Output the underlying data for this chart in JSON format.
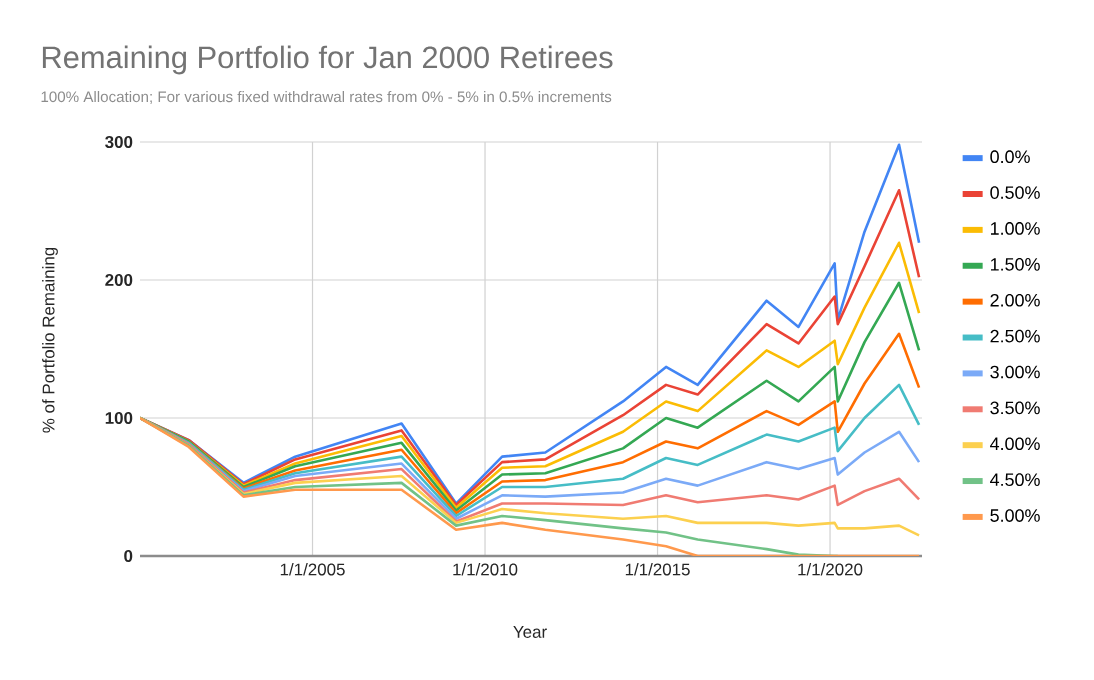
{
  "chart_data": {
    "type": "line",
    "title": "Remaining Portfolio for Jan 2000 Retirees",
    "subtitle": "100% Allocation; For various fixed withdrawal rates from 0% - 5% in 0.5% increments",
    "xlabel": "Year",
    "ylabel": "% of Portfolio Remaining",
    "x": [
      "2000-01",
      "2001-06",
      "2003-01",
      "2004-07",
      "2007-08",
      "2009-03",
      "2010-07",
      "2011-10",
      "2014-01",
      "2015-04",
      "2016-03",
      "2018-03",
      "2019-02",
      "2020-02-19",
      "2020-03-23",
      "2021-01",
      "2022-01",
      "2022-08"
    ],
    "series": [
      {
        "name": "0.0%",
        "color": "#4285f4",
        "values": [
          100,
          84,
          53,
          72,
          96,
          38,
          72,
          75,
          112,
          137,
          124,
          185,
          166,
          212,
          171,
          235,
          298,
          227
        ]
      },
      {
        "name": "0.50%",
        "color": "#ea4335",
        "values": [
          100,
          84,
          52,
          70,
          91,
          37,
          68,
          70,
          102,
          124,
          117,
          168,
          154,
          188,
          168,
          210,
          265,
          202
        ]
      },
      {
        "name": "1.00%",
        "color": "#fbbc04",
        "values": [
          100,
          83,
          51,
          67,
          87,
          35,
          64,
          65,
          90,
          112,
          105,
          149,
          137,
          156,
          139,
          180,
          227,
          176
        ]
      },
      {
        "name": "1.50%",
        "color": "#34a853",
        "values": [
          100,
          83,
          50,
          65,
          82,
          33,
          59,
          60,
          78,
          100,
          93,
          127,
          112,
          137,
          112,
          155,
          198,
          149
        ]
      },
      {
        "name": "2.00%",
        "color": "#ff6d01",
        "values": [
          100,
          82,
          49,
          62,
          77,
          31,
          54,
          55,
          68,
          83,
          78,
          105,
          95,
          112,
          90,
          125,
          161,
          122
        ]
      },
      {
        "name": "2.50%",
        "color": "#46bdc6",
        "values": [
          100,
          82,
          48,
          60,
          72,
          29,
          50,
          50,
          56,
          71,
          66,
          88,
          83,
          93,
          76,
          100,
          124,
          95
        ]
      },
      {
        "name": "3.00%",
        "color": "#7baaf7",
        "values": [
          100,
          81,
          47,
          58,
          67,
          27,
          44,
          43,
          46,
          56,
          51,
          68,
          63,
          71,
          59,
          75,
          90,
          68
        ]
      },
      {
        "name": "3.50%",
        "color": "#f07b72",
        "values": [
          100,
          81,
          46,
          55,
          63,
          25,
          38,
          38,
          37,
          44,
          39,
          44,
          41,
          51,
          37,
          47,
          56,
          41
        ]
      },
      {
        "name": "4.00%",
        "color": "#fcd04f",
        "values": [
          100,
          80,
          45,
          53,
          58,
          24,
          34,
          31,
          27,
          29,
          24,
          24,
          22,
          24,
          20,
          20,
          22,
          15
        ]
      },
      {
        "name": "4.50%",
        "color": "#71c287",
        "values": [
          100,
          80,
          44,
          50,
          53,
          22,
          29,
          26,
          20,
          17,
          12,
          5,
          1,
          0,
          0,
          null,
          null,
          null
        ]
      },
      {
        "name": "5.00%",
        "color": "#ff994d",
        "values": [
          100,
          79,
          43,
          48,
          48,
          19,
          24,
          19,
          12,
          7,
          0,
          0,
          0,
          0,
          0,
          0,
          0,
          0
        ]
      }
    ],
    "xlim": [
      "2000-01",
      "2022-09"
    ],
    "xticks": [
      {
        "value": "2005-01-01",
        "label": "1/1/2005"
      },
      {
        "value": "2010-01-01",
        "label": "1/1/2010"
      },
      {
        "value": "2015-01-01",
        "label": "1/1/2015"
      },
      {
        "value": "2020-01-01",
        "label": "1/1/2020"
      }
    ],
    "ylim": [
      0,
      300
    ],
    "yticks": [
      0,
      100,
      200,
      300
    ],
    "grid": true,
    "legend": "right"
  }
}
